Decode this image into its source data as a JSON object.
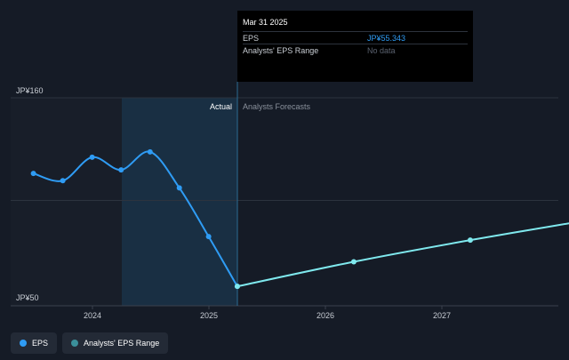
{
  "chart_data": {
    "type": "line",
    "x_ticks": [
      "2024",
      "2025",
      "2026",
      "2027"
    ],
    "y_ticks": [
      "JP¥160",
      "JP¥50"
    ],
    "ylim": [
      50,
      160
    ],
    "region_labels": {
      "actual": "Actual",
      "forecast": "Analysts Forecasts"
    },
    "series": [
      {
        "name": "EPS",
        "color": "#2f9cf4",
        "points": [
          {
            "x": "2023-06-30",
            "y": 118
          },
          {
            "x": "2023-09-30",
            "y": 114
          },
          {
            "x": "2023-12-31",
            "y": 127
          },
          {
            "x": "2024-03-31",
            "y": 120
          },
          {
            "x": "2024-06-30",
            "y": 130
          },
          {
            "x": "2024-09-30",
            "y": 110
          },
          {
            "x": "2024-12-31",
            "y": 83
          },
          {
            "x": "2025-03-31",
            "y": 55.343
          }
        ]
      },
      {
        "name": "EPS forecast",
        "color": "#7fe9ee",
        "points": [
          {
            "x": "2025-03-31",
            "y": 55.343
          },
          {
            "x": "2026-03-31",
            "y": 69
          },
          {
            "x": "2027-03-31",
            "y": 81
          },
          {
            "x": "2028-03-31",
            "y": 92
          }
        ]
      }
    ]
  },
  "tooltip": {
    "date": "Mar 31 2025",
    "eps_label": "EPS",
    "eps_value": "JP¥55.343",
    "range_label": "Analysts' EPS Range",
    "range_value": "No data"
  },
  "legend": {
    "eps_label": "EPS",
    "eps_color": "#2f9cf4",
    "range_label": "Analysts' EPS Range",
    "range_color": "#3b8f9a"
  }
}
